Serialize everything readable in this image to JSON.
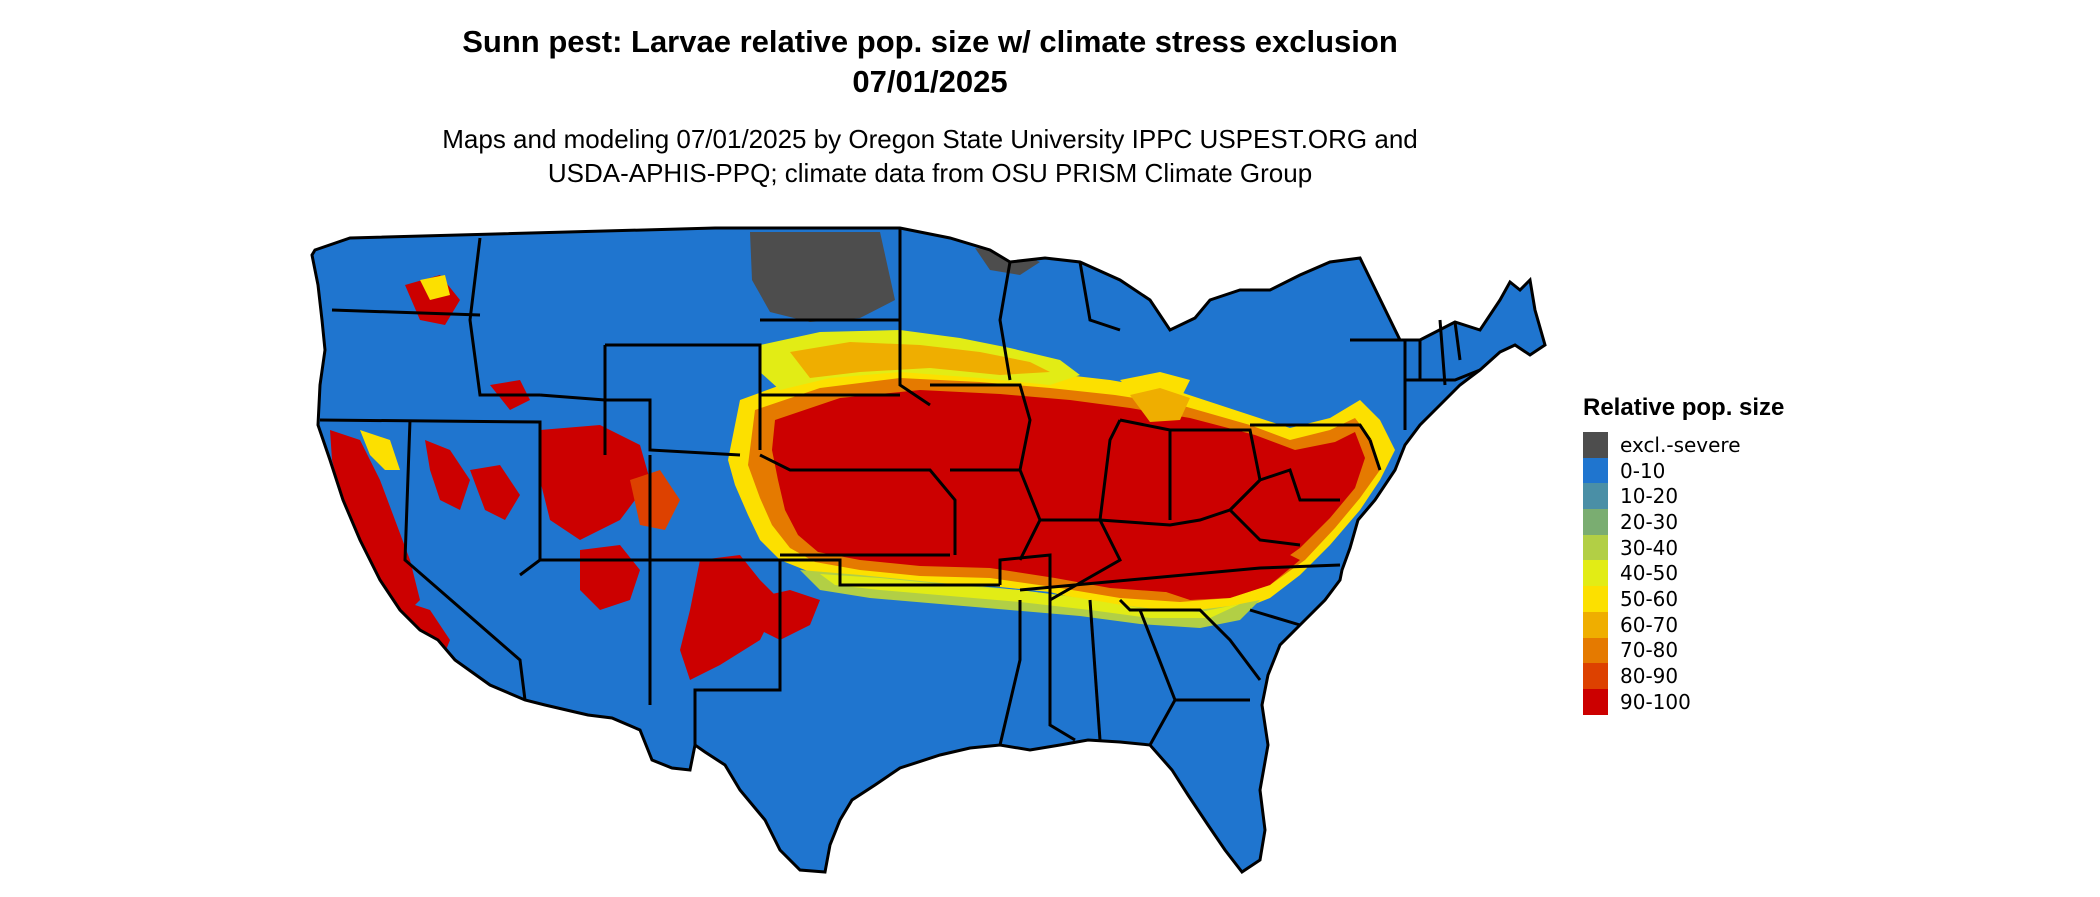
{
  "title_line1": "Sunn pest: Larvae relative pop. size w/ climate stress exclusion",
  "title_line2": "07/01/2025",
  "subtitle_line1": "Maps and modeling 07/01/2025 by Oregon State University IPPC USPEST.ORG and",
  "subtitle_line2": "USDA-APHIS-PPQ; climate data from OSU PRISM Climate Group",
  "legend": {
    "title": "Relative pop. size",
    "items": [
      {
        "label": "excl.-severe",
        "color": "#4d4d4d"
      },
      {
        "label": "0-10",
        "color": "#1f75cf"
      },
      {
        "label": "10-20",
        "color": "#4a8fa6"
      },
      {
        "label": "20-30",
        "color": "#7aad71"
      },
      {
        "label": "30-40",
        "color": "#b2cf45"
      },
      {
        "label": "40-50",
        "color": "#e2ec15"
      },
      {
        "label": "50-60",
        "color": "#fce000"
      },
      {
        "label": "60-70",
        "color": "#efae00"
      },
      {
        "label": "70-80",
        "color": "#e57a00"
      },
      {
        "label": "80-90",
        "color": "#dd4100"
      },
      {
        "label": "90-100",
        "color": "#cc0000"
      }
    ]
  }
}
